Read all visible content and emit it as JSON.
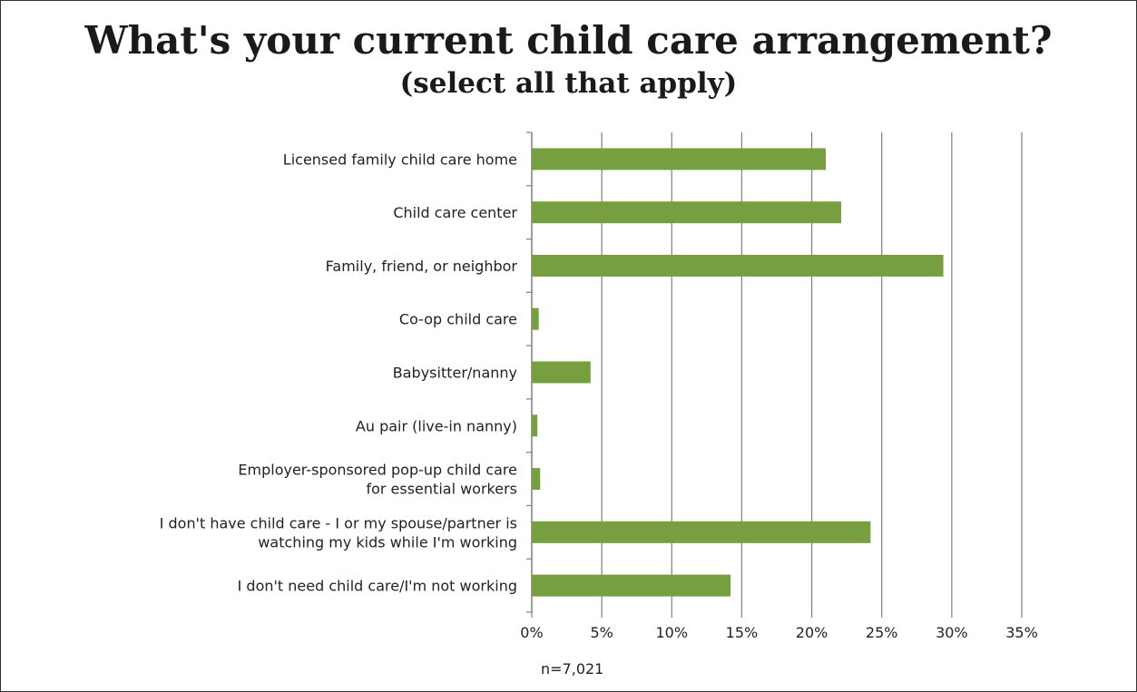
{
  "chart_data": {
    "type": "bar",
    "orientation": "horizontal",
    "title": "What's your current child care arrangement?",
    "subtitle": "(select all that apply)",
    "categories": [
      [
        "Licensed family child care home"
      ],
      [
        "Child care center"
      ],
      [
        "Family, friend, or neighbor"
      ],
      [
        "Co-op child care"
      ],
      [
        "Babysitter/nanny"
      ],
      [
        "Au pair (live-in nanny)"
      ],
      [
        "Employer-sponsored pop-up child care",
        "for essential workers"
      ],
      [
        "I don't have child care - I or my spouse/partner is",
        "watching my kids while I'm working"
      ],
      [
        "I don't need child care/I'm not working"
      ]
    ],
    "values": [
      21.0,
      22.1,
      29.4,
      0.5,
      4.2,
      0.4,
      0.6,
      24.2,
      14.2
    ],
    "xlim": [
      0,
      35
    ],
    "xticks": [
      0,
      5,
      10,
      15,
      20,
      25,
      30,
      35
    ],
    "xtick_labels": [
      "0%",
      "5%",
      "10%",
      "15%",
      "20%",
      "25%",
      "30%",
      "35%"
    ],
    "grid": "vertical",
    "bar_color": "#76a040",
    "grid_color": "#7f7f7f",
    "note": "n=7,021"
  }
}
